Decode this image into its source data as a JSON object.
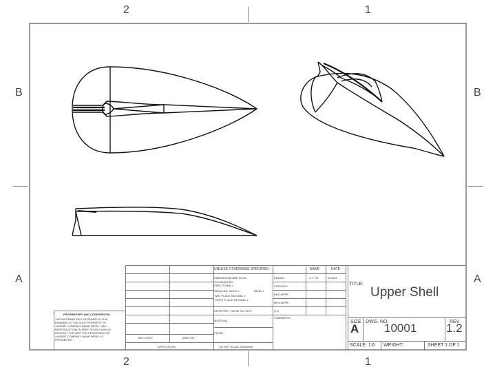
{
  "zones": {
    "top": [
      "2",
      "1"
    ],
    "bottom": [
      "2",
      "1"
    ],
    "left": [
      "B",
      "A"
    ],
    "right": [
      "B",
      "A"
    ]
  },
  "title_block": {
    "unless_otherwise": "UNLESS OTHERWISE SPECIFIED:",
    "name_header": "NAME",
    "date_header": "DATE",
    "dimensions": "DIMENSIONS ARE IN mm",
    "tolerances": "TOLERANCES:",
    "fractional": "FRACTIONAL ±",
    "angular": "ANGULAR: MACH ±",
    "bend": "BEND ±",
    "two_place": "TWO PLACE DECIMAL   ±",
    "three_place": "THREE PLACE DECIMAL  ±",
    "interpret": "INTERPRET GEOM TOL PER:",
    "material": "MATERIAL",
    "finish": "FINISH",
    "do_not_scale": "DO NOT SCALE DRAWING",
    "drawn": "DRAWN",
    "drawn_name": "C. F. W.",
    "drawn_date": "12/3/24",
    "checked": "CHECKED",
    "eng_appr": "ENG APPR.",
    "mfg_appr": "MFG APPR.",
    "qa": "Q.A.",
    "comments": "COMMENTS:",
    "next_assy": "NEXT ASSY",
    "used_on": "USED ON",
    "application": "APPLICATION",
    "proprietary_title": "PROPRIETARY AND CONFIDENTIAL",
    "proprietary_body": [
      "THE INFORMATION CONTAINED IN THIS",
      "DRAWING IS THE SOLE PROPERTY OF",
      "<INSERT COMPANY NAME HERE>. ANY",
      "REPRODUCTION IN PART OR AS A WHOLE",
      "WITHOUT THE WRITTEN PERMISSION OF",
      "<INSERT COMPANY NAME HERE> IS",
      "PROHIBITED."
    ],
    "title_label": "TITLE:",
    "title_value": "Upper Shell",
    "size_label": "SIZE",
    "size_value": "A",
    "dwg_label": "DWG.  NO.",
    "dwg_value": "10001",
    "rev_label": "REV",
    "rev_value": "1.2",
    "scale": "SCALE: 1:6",
    "weight": "WEIGHT:",
    "sheet": "SHEET 1 OF 1"
  }
}
